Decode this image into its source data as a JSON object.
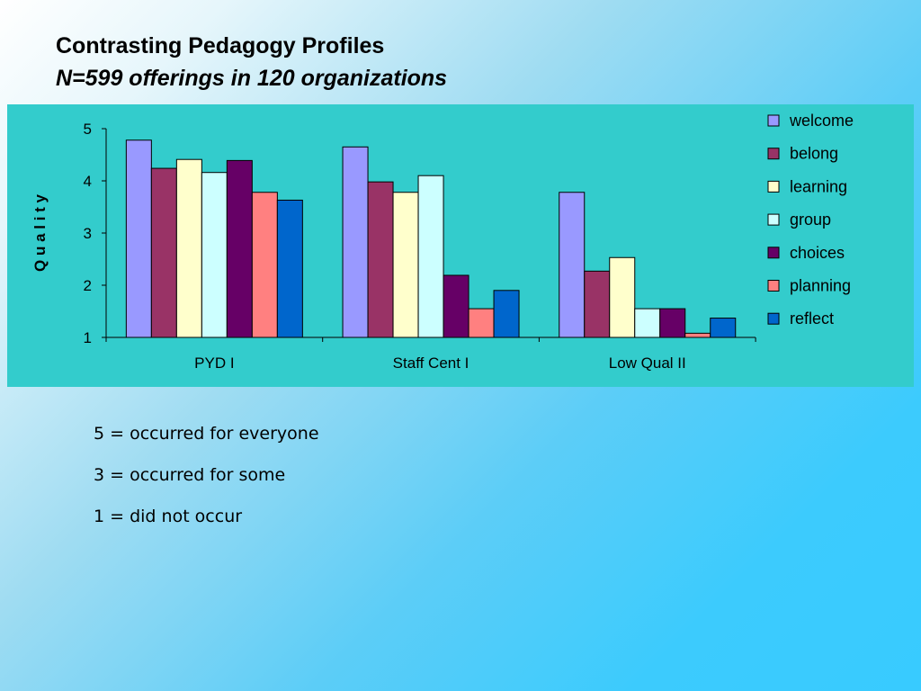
{
  "slide": {
    "title": "Contrasting Pedagogy Profiles",
    "subtitle": "N=599 offerings in 120 organizations"
  },
  "chart_data": {
    "type": "bar",
    "title": "",
    "xlabel": "",
    "ylabel": "Q u a l i t y",
    "ylim": [
      1,
      5
    ],
    "yticks": [
      "1",
      "2",
      "3",
      "4",
      "5"
    ],
    "grid": false,
    "legend_position": "right",
    "categories": [
      "PYD I",
      "Staff Cent I",
      "Low Qual II"
    ],
    "series": [
      {
        "name": "welcome",
        "color": "#9999ff",
        "values": [
          4.78,
          4.65,
          3.78
        ]
      },
      {
        "name": "belong",
        "color": "#993366",
        "values": [
          4.24,
          3.98,
          2.27
        ]
      },
      {
        "name": "learning",
        "color": "#ffffcc",
        "values": [
          4.41,
          3.78,
          2.53
        ]
      },
      {
        "name": "group",
        "color": "#ccffff",
        "values": [
          4.16,
          4.1,
          1.55
        ]
      },
      {
        "name": "choices",
        "color": "#660066",
        "values": [
          4.39,
          2.19,
          1.55
        ]
      },
      {
        "name": "planning",
        "color": "#ff8080",
        "values": [
          3.78,
          1.55,
          1.08
        ]
      },
      {
        "name": "reflect",
        "color": "#0066cc",
        "values": [
          3.63,
          1.9,
          1.37
        ]
      }
    ]
  },
  "notes": [
    "5 = occurred for everyone",
    "3 = occurred for some",
    "1 = did not occur"
  ]
}
